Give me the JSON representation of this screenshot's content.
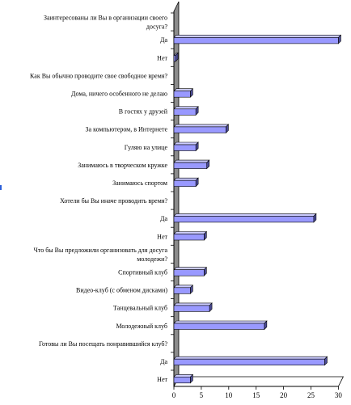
{
  "chart_data": {
    "type": "bar",
    "orientation": "horizontal",
    "categories": [
      "Заинтересованы ли Вы в организации своего досуга?",
      "Да",
      "Нет",
      "Как Вы обычно проводите свое свободное время?",
      "Дома, ничего особенного не делаю",
      "В гостях у друзей",
      "За компьютером, в Интернете",
      "Гуляю на улице",
      "Занимаюсь в творческом кружке",
      "Занимаюсь спортом",
      "Хотели бы Вы иначе проводить время?",
      "Да",
      "Нет",
      "Что бы Вы предложили организовать для досуга молодежи?",
      "Спортивный клуб",
      "Видео-клуб (с обменом дисками)",
      "Танцевальный клуб",
      "Молодежный клуб",
      "Готовы ли Вы посещать понравившийся клуб?",
      "Да",
      "Нет"
    ],
    "values": [
      null,
      30,
      0.3,
      null,
      3,
      4,
      9.5,
      4,
      6,
      4,
      null,
      25.5,
      5.5,
      null,
      5.5,
      3,
      6.5,
      16.5,
      null,
      27.5,
      3
    ],
    "xlim": [
      0,
      30
    ],
    "xticks": [
      0,
      5,
      10,
      15,
      20,
      25,
      30
    ],
    "bar_color": "#9999ff",
    "bar_side_color": "#4d4d99",
    "wall_color": "#8c8c8c",
    "grid": false,
    "legend": "none"
  }
}
